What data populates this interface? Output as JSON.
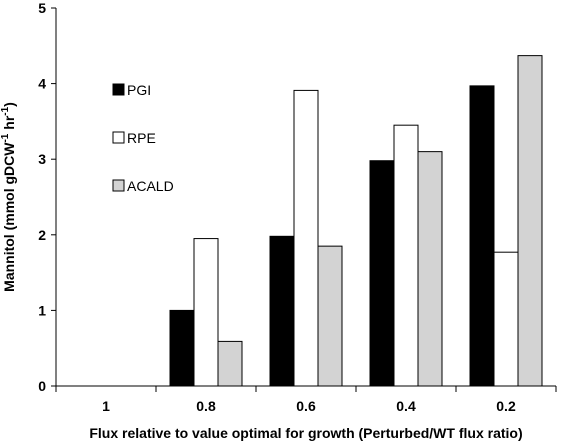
{
  "chart_data": {
    "type": "bar",
    "categories": [
      "1",
      "0.8",
      "0.6",
      "0.4",
      "0.2"
    ],
    "series": [
      {
        "name": "PGI",
        "color": "#000000",
        "values": [
          0,
          1.0,
          1.98,
          2.98,
          3.97
        ]
      },
      {
        "name": "RPE",
        "color": "#ffffff",
        "values": [
          0,
          1.95,
          3.91,
          3.45,
          1.77
        ]
      },
      {
        "name": "ACALD",
        "color": "#d3d3d3",
        "values": [
          0,
          0.59,
          1.85,
          3.1,
          4.37
        ]
      }
    ],
    "xlabel": "Flux relative to value optimal for growth (Perturbed/WT flux ratio)",
    "ylabel": "Mannitol (mmol gDCW",
    "ylabel_sup1": "-1",
    "ylabel_mid": " hr",
    "ylabel_sup2": "-1",
    "ylabel_end": ")",
    "ylim": [
      0,
      5
    ],
    "yticks": [
      "0",
      "1",
      "2",
      "3",
      "4",
      "5"
    ],
    "legend_position": "top-left",
    "grid": false
  }
}
